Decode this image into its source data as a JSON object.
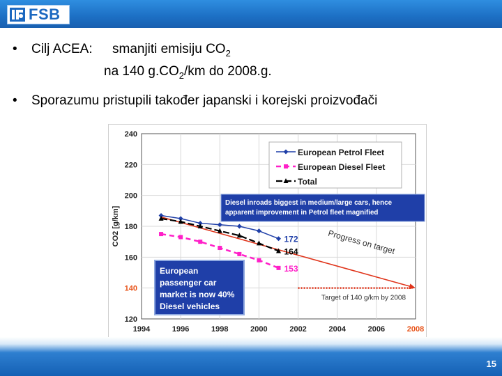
{
  "header": {
    "logo_text": "FSB"
  },
  "bullets": [
    {
      "marker": "•",
      "lead": "Cilj ACEA:",
      "line1_a": "smanjiti emisiju CO",
      "line1_sub": "2",
      "line2_a": "na 140 g.CO",
      "line2_sub": "2",
      "line2_b": "/km do 2008.g."
    },
    {
      "marker": "•",
      "text": "Sporazumu pristupili također japanski i korejski proizvođači"
    }
  ],
  "chart_data": {
    "type": "line",
    "ylabel": "CO2 [g/km]",
    "ylim": [
      120,
      240
    ],
    "xlim": [
      1994,
      2008
    ],
    "yticks": [
      "240",
      "220",
      "200",
      "180",
      "160",
      "140",
      "120"
    ],
    "xticks": [
      "1994",
      "1996",
      "1998",
      "2000",
      "2002",
      "2004",
      "2006",
      "2008"
    ],
    "highlight_tick_color": "#e8541a",
    "series": [
      {
        "name": "European Petrol Fleet",
        "color": "#1f3fa8",
        "x": [
          1995,
          1996,
          1997,
          1998,
          1999,
          2000,
          2001
        ],
        "y": [
          187,
          185,
          182,
          181,
          180,
          177,
          172
        ],
        "end_label": "172"
      },
      {
        "name": "European Diesel Fleet",
        "color": "#ff1fc8",
        "x": [
          1995,
          1996,
          1997,
          1998,
          1999,
          2000,
          2001
        ],
        "y": [
          175,
          173,
          170,
          166,
          162,
          158,
          153
        ],
        "end_label": "153"
      },
      {
        "name": "Total",
        "color": "#000000",
        "x": [
          1995,
          1996,
          1997,
          1998,
          1999,
          2000,
          2001
        ],
        "y": [
          185,
          183,
          180,
          177,
          174,
          169,
          164
        ],
        "end_label": "164"
      }
    ],
    "trend": {
      "label": "Progress on target",
      "color": "#e0341a",
      "x": [
        1995,
        2008
      ],
      "y": [
        186,
        140
      ]
    },
    "target": {
      "label": "Target of 140 g/km by 2008",
      "value": 140,
      "color": "#e0341a",
      "x": [
        2002,
        2008
      ]
    },
    "annotations": [
      {
        "lines": [
          "Diesel inroads biggest in medium/large cars, hence",
          "apparent improvement in Petrol fleet magnified"
        ]
      },
      {
        "lines": [
          "European",
          "passenger car",
          "market is now 40%",
          "Diesel vehicles"
        ]
      }
    ]
  },
  "footer": {
    "page": "15"
  }
}
